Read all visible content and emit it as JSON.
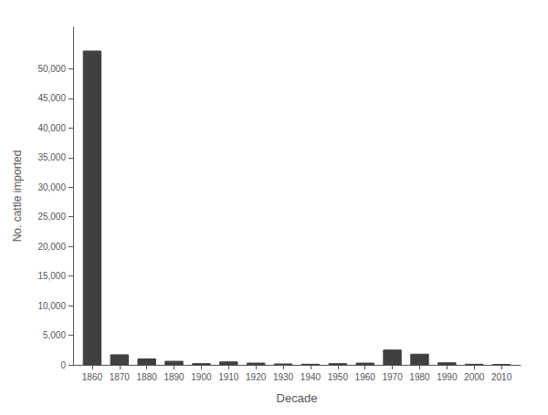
{
  "chart_data": {
    "type": "bar",
    "x": [
      1860,
      1870,
      1880,
      1890,
      1900,
      1910,
      1920,
      1930,
      1940,
      1950,
      1960,
      1970,
      1980,
      1990,
      2000,
      2010
    ],
    "values": [
      53000,
      1700,
      1000,
      600,
      200,
      500,
      300,
      150,
      100,
      200,
      300,
      2500,
      1800,
      350,
      100,
      50
    ],
    "color": "#404040",
    "xlabel": "Decade",
    "ylabel": "No. cattle imported",
    "xlim": [
      1853,
      2017
    ],
    "xticks": [
      1860,
      1870,
      1880,
      1890,
      1900,
      1910,
      1920,
      1930,
      1940,
      1950,
      1960,
      1970,
      1980,
      1990,
      2000,
      2010
    ],
    "ylim": [
      0,
      57000
    ],
    "yticks": [
      0,
      {
        "value": 5000,
        "label": "5,000"
      },
      {
        "value": 10000,
        "label": "10,000"
      },
      {
        "value": 15000,
        "label": "15,000"
      },
      {
        "value": 20000,
        "label": "20,000"
      },
      {
        "value": 25000,
        "label": "25,000"
      },
      {
        "value": 30000,
        "label": "30,000"
      },
      {
        "value": 35000,
        "label": "35,000"
      },
      {
        "value": 40000,
        "label": "40,000"
      },
      {
        "value": 45000,
        "label": "45,000"
      },
      {
        "value": 50000,
        "label": "50,000"
      }
    ],
    "grid": false
  }
}
